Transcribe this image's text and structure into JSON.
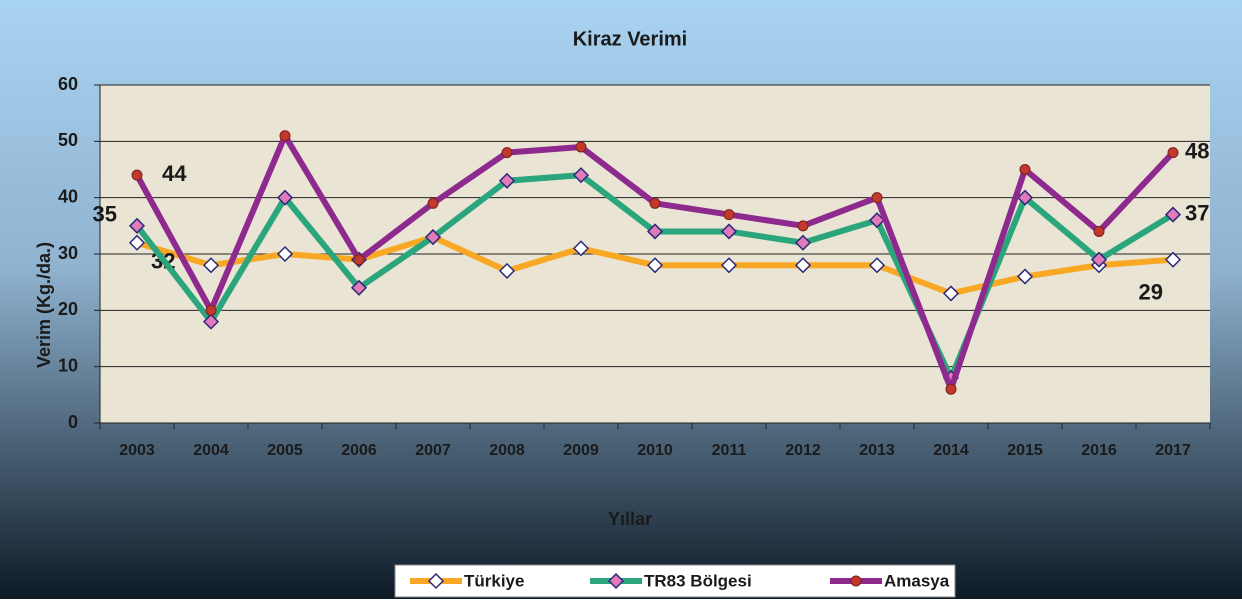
{
  "chart_data": {
    "type": "line",
    "title": "Kiraz Verimi",
    "x_label": "Yıllar",
    "y_label": "Verim (Kg./da.)",
    "categories": [
      "2003",
      "2004",
      "2005",
      "2006",
      "2007",
      "2008",
      "2009",
      "2010",
      "2011",
      "2012",
      "2013",
      "2014",
      "2015",
      "2016",
      "2017"
    ],
    "series": [
      {
        "name": "Türkiye",
        "color": "#f9a825",
        "marker": "diamond",
        "marker_color": "#ffffff",
        "values": [
          32,
          28,
          30,
          29,
          33,
          27,
          31,
          28,
          28,
          28,
          28,
          23,
          26,
          28,
          29
        ]
      },
      {
        "name": "TR83 Bölgesi",
        "color": "#2ba57b",
        "marker": "diamond",
        "marker_color": "#e07ab8",
        "values": [
          35,
          18,
          40,
          24,
          33,
          43,
          44,
          34,
          34,
          32,
          36,
          8,
          40,
          29,
          37
        ]
      },
      {
        "name": "Amasya",
        "color": "#8e2a8e",
        "marker": "circle",
        "marker_color": "#c0392b",
        "values": [
          44,
          20,
          51,
          29,
          39,
          48,
          49,
          39,
          37,
          35,
          40,
          6,
          45,
          34,
          48
        ]
      }
    ],
    "ylim": [
      0,
      60
    ],
    "yticks": [
      0,
      10,
      20,
      30,
      40,
      50,
      60
    ],
    "grid": true,
    "legend": "bottom"
  }
}
